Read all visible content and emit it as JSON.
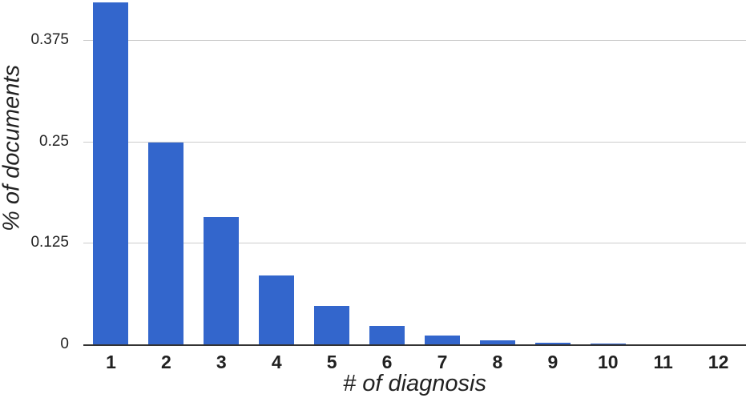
{
  "chart_data": {
    "type": "bar",
    "title": "",
    "xlabel": "# of diagnosis",
    "ylabel": "% of documents",
    "categories": [
      "1",
      "2",
      "3",
      "4",
      "5",
      "6",
      "7",
      "8",
      "9",
      "10",
      "11",
      "12"
    ],
    "values": [
      0.421,
      0.249,
      0.157,
      0.085,
      0.047,
      0.023,
      0.011,
      0.0045,
      0.002,
      0.001,
      0,
      0
    ],
    "yticks": [
      {
        "label": "0",
        "value": 0
      },
      {
        "label": "0.125",
        "value": 0.125
      },
      {
        "label": "0.25",
        "value": 0.25
      },
      {
        "label": "0.375",
        "value": 0.375
      }
    ],
    "ylim": [
      0,
      0.4242
    ],
    "grid": true,
    "legend": "none",
    "colors": {
      "bar": "#3366CC",
      "grid": "#CCCCCC",
      "axis_line": "#333333",
      "tick_text": "#212121",
      "title_text": "#222222",
      "background": "#FFFFFF"
    }
  }
}
